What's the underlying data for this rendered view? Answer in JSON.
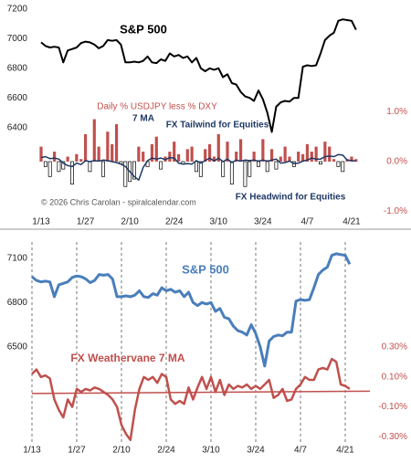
{
  "chart_data": [
    {
      "type": "combo",
      "categories": [
        "1/13",
        null,
        null,
        null,
        null,
        null,
        null,
        null,
        null,
        null,
        "1/27",
        null,
        null,
        null,
        null,
        null,
        null,
        null,
        null,
        null,
        "2/10",
        null,
        null,
        null,
        null,
        null,
        null,
        null,
        null,
        null,
        "2/24",
        null,
        null,
        null,
        null,
        null,
        null,
        null,
        null,
        null,
        "3/10",
        null,
        null,
        null,
        null,
        null,
        null,
        null,
        null,
        null,
        "3/24",
        null,
        null,
        null,
        null,
        null,
        null,
        null,
        null,
        null,
        "4/7",
        null,
        null,
        null,
        null,
        null,
        null,
        null,
        null,
        null,
        "4/21",
        null
      ],
      "ylim": [
        5800,
        7230
      ],
      "yticks": [
        6400,
        6600,
        6800,
        7000,
        7200
      ],
      "y2lim": [
        -1.1,
        3.15
      ],
      "y2ticks": [
        {
          "value": -1,
          "label": "-1.0%"
        },
        {
          "value": 0,
          "label": "0.0%"
        },
        {
          "value": 1,
          "label": "1.0%"
        }
      ],
      "xgrid": false,
      "series": [
        {
          "name": "S&P 500",
          "type": "line",
          "color": "#000000",
          "axis": "y",
          "values": [
            6975,
            6950,
            6940,
            6945,
            6940,
            6840,
            6920,
            6930,
            6940,
            6970,
            6980,
            6975,
            6960,
            6935,
            6950,
            6990,
            6985,
            6990,
            6960,
            6840,
            6840,
            6845,
            6840,
            6850,
            6880,
            6840,
            6835,
            6860,
            6850,
            6900,
            6880,
            6890,
            6870,
            6880,
            6840,
            6870,
            6800,
            6780,
            6800,
            6790,
            6800,
            6740,
            6760,
            6700,
            6690,
            6640,
            6610,
            6600,
            6580,
            6650,
            6590,
            6500,
            6370,
            6540,
            6570,
            6580,
            6575,
            6600,
            6600,
            6810,
            6820,
            6815,
            6820,
            6900,
            6990,
            7020,
            7040,
            7120,
            7130,
            7125,
            7120,
            7060
          ]
        },
        {
          "name": "Daily % USDJPY less % DXY",
          "type": "bar",
          "color": "#c0504d",
          "negative_color": "#ffffff",
          "axis": "y2",
          "values": [
            0.3,
            -0.1,
            -0.3,
            0.2,
            -0.2,
            -0.15,
            0.1,
            -0.45,
            0.15,
            0.05,
            0.55,
            -0.2,
            0.85,
            0.3,
            -0.3,
            0.6,
            0.35,
            0.75,
            -0.05,
            -0.5,
            -0.4,
            -0.35,
            0.3,
            0.2,
            -0.1,
            0.35,
            0.5,
            -0.15,
            0.1,
            0.2,
            0.4,
            0.15,
            -0.05,
            0.25,
            0.3,
            -0.2,
            -0.3,
            0.25,
            0.35,
            0.1,
            0.55,
            -0.3,
            0.4,
            -0.45,
            0.2,
            0.45,
            -0.5,
            -0.3,
            0.2,
            -0.1,
            0.45,
            -0.2,
            0.25,
            -0.15,
            0.1,
            0.3,
            0.1,
            -0.1,
            0.2,
            0.15,
            0.35,
            0.2,
            0.3,
            -0.05,
            0.4,
            0.3,
            0.05,
            -0.1,
            -0.2,
            0.05,
            0.1,
            0.05
          ]
        },
        {
          "name": "7 MA",
          "type": "line",
          "color": "#1f3864",
          "axis": "y2",
          "values": [
            0.08,
            0.1,
            0.06,
            0.07,
            0.05,
            -0.03,
            -0.08,
            -0.1,
            -0.03,
            -0.06,
            0.02,
            0.0,
            0.02,
            0.01,
            0.03,
            0.02,
            0.0,
            -0.02,
            -0.05,
            -0.1,
            -0.2,
            -0.3,
            -0.37,
            -0.12,
            0.02,
            0.07,
            0.05,
            0.07,
            0.04,
            0.08,
            0.07,
            -0.03,
            -0.05,
            -0.04,
            -0.05,
            0.02,
            -0.03,
            0.02,
            0.07,
            0.01,
            0.07,
            0.0,
            0.05,
            -0.02,
            0.03,
            0.01,
            0.03,
            0.02,
            0.03,
            0.01,
            0.03,
            0.01,
            0.03,
            0.05,
            -0.03,
            -0.02,
            0.01,
            -0.04,
            -0.03,
            0.01,
            0.03,
            0.07,
            0.05,
            0.05,
            0.1,
            0.11,
            0.1,
            0.14,
            0.13,
            0.03,
            0.02,
            0.01
          ]
        }
      ],
      "annotations": [
        {
          "text": "FX Tailwind for Equities",
          "color": "#1f3864"
        },
        {
          "text": "FX Headwind for Equities",
          "color": "#1f3864"
        },
        {
          "text": "© 2026 Chris Carolan - spiralcalendar.com",
          "color": "#555555"
        }
      ]
    },
    {
      "type": "line",
      "categories": [
        "1/13",
        null,
        null,
        null,
        null,
        null,
        null,
        null,
        null,
        null,
        "1/27",
        null,
        null,
        null,
        null,
        null,
        null,
        null,
        null,
        null,
        "2/10",
        null,
        null,
        null,
        null,
        null,
        null,
        null,
        null,
        null,
        "2/24",
        null,
        null,
        null,
        null,
        null,
        null,
        null,
        null,
        null,
        "3/10",
        null,
        null,
        null,
        null,
        null,
        null,
        null,
        null,
        null,
        "3/24",
        null,
        null,
        null,
        null,
        null,
        null,
        null,
        null,
        null,
        "4/7",
        null,
        null,
        null,
        null,
        null,
        null,
        null,
        null,
        null,
        "4/21",
        null
      ],
      "ylim": [
        5850,
        7210
      ],
      "yticks": [
        6500,
        6800,
        7100
      ],
      "y2lim": [
        -0.34,
        1.0
      ],
      "y2ticks": [
        {
          "value": -0.3,
          "label": "-0.30%"
        },
        {
          "value": -0.1,
          "label": "-0.10%"
        },
        {
          "value": 0.1,
          "label": "0.10%"
        },
        {
          "value": 0.3,
          "label": "0.30%"
        }
      ],
      "xgrid": true,
      "series": [
        {
          "name": "S&P 500",
          "type": "line",
          "color": "#4a7ebb",
          "axis": "y",
          "values": [
            6975,
            6950,
            6940,
            6945,
            6940,
            6840,
            6920,
            6930,
            6940,
            6970,
            6980,
            6975,
            6960,
            6935,
            6950,
            6990,
            6985,
            6990,
            6960,
            6840,
            6840,
            6845,
            6840,
            6850,
            6880,
            6840,
            6835,
            6860,
            6850,
            6900,
            6880,
            6890,
            6870,
            6880,
            6840,
            6870,
            6800,
            6780,
            6800,
            6790,
            6800,
            6740,
            6760,
            6700,
            6690,
            6640,
            6610,
            6600,
            6580,
            6650,
            6590,
            6500,
            6370,
            6540,
            6570,
            6580,
            6575,
            6600,
            6600,
            6810,
            6820,
            6815,
            6820,
            6900,
            6990,
            7020,
            7040,
            7120,
            7130,
            7125,
            7120,
            7060
          ]
        },
        {
          "name": "FX Weathervane 7 MA",
          "type": "line",
          "color": "#c0504d",
          "axis": "y2",
          "values": [
            0.12,
            0.15,
            0.1,
            0.11,
            0.09,
            -0.05,
            -0.12,
            -0.17,
            -0.05,
            -0.1,
            0.02,
            0.0,
            0.02,
            0.01,
            0.03,
            0.02,
            0.0,
            -0.02,
            -0.05,
            -0.1,
            -0.22,
            -0.28,
            -0.32,
            -0.12,
            0.02,
            0.1,
            0.08,
            0.1,
            0.06,
            0.12,
            0.1,
            -0.05,
            -0.08,
            -0.06,
            -0.08,
            0.03,
            -0.05,
            0.03,
            0.1,
            0.02,
            0.1,
            0.0,
            0.08,
            -0.02,
            0.05,
            0.02,
            0.04,
            0.03,
            0.05,
            0.02,
            0.04,
            0.02,
            0.05,
            0.08,
            -0.04,
            -0.02,
            0.02,
            -0.06,
            -0.05,
            0.02,
            0.05,
            0.1,
            0.08,
            0.08,
            0.15,
            0.16,
            0.15,
            0.22,
            0.2,
            0.05,
            0.04,
            0.02
          ]
        }
      ],
      "reference_line": {
        "color": "#c0504d",
        "values": [
          -0.01,
          0.005
        ]
      }
    }
  ]
}
